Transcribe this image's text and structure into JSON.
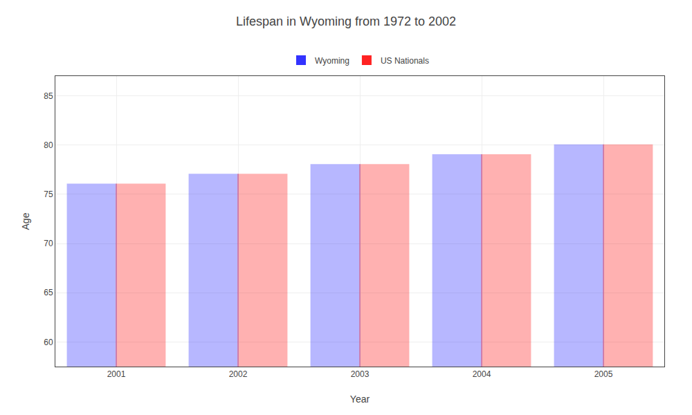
{
  "chart_data": {
    "type": "bar",
    "title": "Lifespan in Wyoming from 1972 to 2002",
    "xlabel": "Year",
    "ylabel": "Age",
    "categories": [
      "2001",
      "2002",
      "2003",
      "2004",
      "2005"
    ],
    "series": [
      {
        "name": "Wyoming",
        "color": "#3333ff",
        "values": [
          76,
          77,
          78,
          79,
          80
        ]
      },
      {
        "name": "US Nationals",
        "color": "#ff2222",
        "values": [
          76,
          77,
          78,
          79,
          80
        ]
      }
    ],
    "ylim": [
      57.5,
      87
    ],
    "yticks": [
      60,
      65,
      70,
      75,
      80,
      85
    ],
    "grid": true,
    "legend": "top"
  }
}
